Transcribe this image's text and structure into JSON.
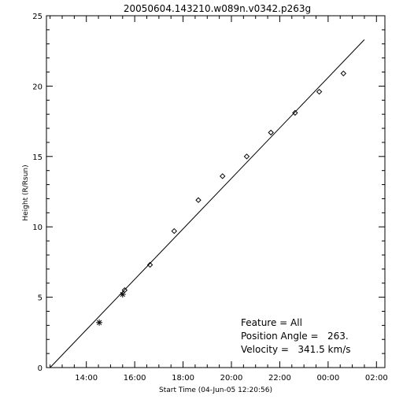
{
  "chart_data": {
    "type": "scatter",
    "title": "20050604.143210.w089n.v0342.p263g",
    "xlabel": "Start Time (04-Jun-05 12:20:56)",
    "ylabel": "Height (R/Rsun)",
    "xlim": [
      "04-Jun-05 12:20:56",
      "05-Jun-05 02:20:56"
    ],
    "ylim": [
      0,
      25
    ],
    "x_ticks": [
      "14:00",
      "16:00",
      "18:00",
      "20:00",
      "22:00",
      "00:00",
      "02:00"
    ],
    "y_ticks": [
      "0",
      "5",
      "10",
      "15",
      "20",
      "25"
    ],
    "grid": false,
    "series": [
      {
        "marker": "asterisk",
        "points": [
          {
            "x": "04-Jun-05 14:32",
            "y": 3.2
          },
          {
            "x": "04-Jun-05 15:30",
            "y": 5.2
          }
        ]
      },
      {
        "marker": "diamond",
        "points": [
          {
            "x": "04-Jun-05 15:35",
            "y": 5.5
          },
          {
            "x": "04-Jun-05 16:38",
            "y": 7.3
          },
          {
            "x": "04-Jun-05 17:38",
            "y": 9.7
          },
          {
            "x": "04-Jun-05 18:38",
            "y": 11.9
          },
          {
            "x": "04-Jun-05 19:38",
            "y": 13.6
          },
          {
            "x": "04-Jun-05 20:38",
            "y": 15.0
          },
          {
            "x": "04-Jun-05 21:38",
            "y": 16.7
          },
          {
            "x": "04-Jun-05 22:38",
            "y": 18.1
          },
          {
            "x": "04-Jun-05 23:38",
            "y": 19.6
          },
          {
            "x": "05-Jun-05 00:38",
            "y": 20.9
          }
        ]
      }
    ],
    "fit_line": {
      "type": "line",
      "points": [
        {
          "x": "04-Jun-05 12:30",
          "y": 0.0
        },
        {
          "x": "05-Jun-05 01:30",
          "y": 23.3
        }
      ]
    },
    "annotations": [
      "Feature = All",
      "Position Angle =   263.",
      "Velocity =   341.5 km/s"
    ]
  }
}
